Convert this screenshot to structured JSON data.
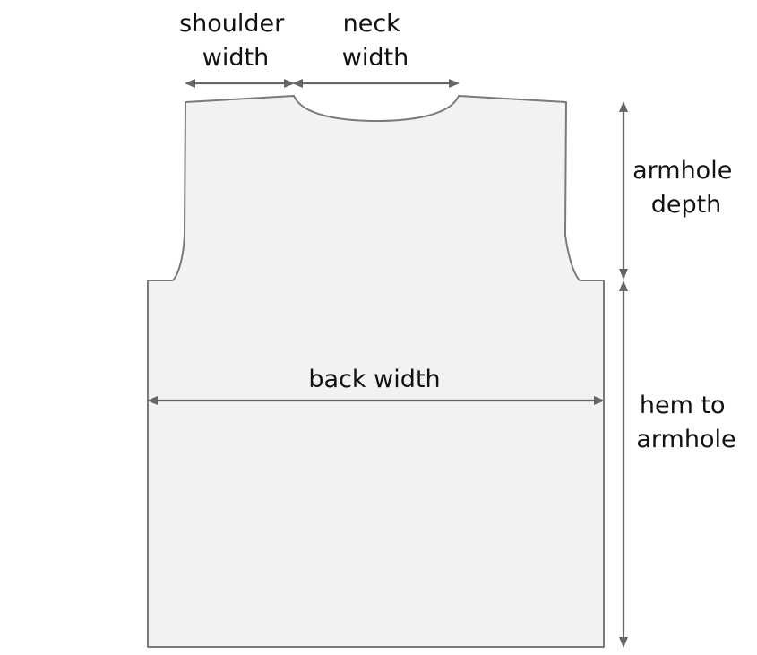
{
  "labels": {
    "shoulder_width": [
      "shoulder",
      "width"
    ],
    "neck_width": [
      "neck",
      "width"
    ],
    "armhole_depth": [
      "armhole",
      "depth"
    ],
    "back_width": [
      "back width"
    ],
    "hem_to_armhole": [
      "hem to",
      "armhole"
    ]
  },
  "colors": {
    "garment_fill": "#f2f2f2",
    "garment_outline": "#7a7a7a",
    "arrow": "#666666",
    "text": "#111111"
  }
}
